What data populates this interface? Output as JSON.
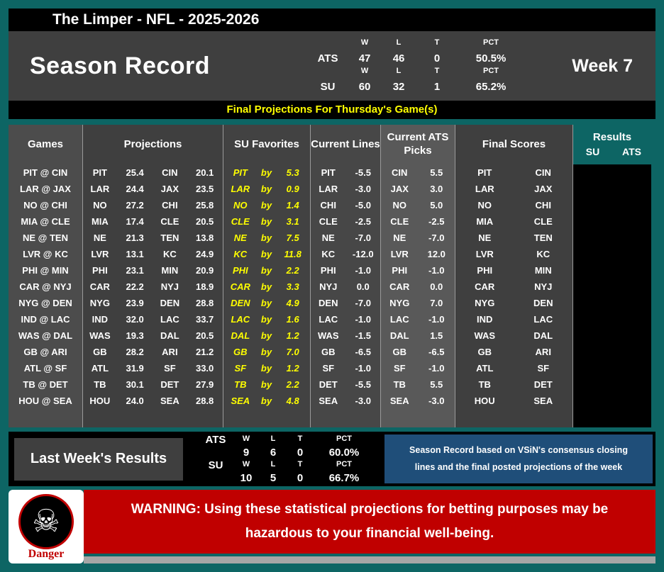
{
  "title_bar": {
    "title": "The Limper - NFL - 2025-2026"
  },
  "season_record": {
    "heading": "Season Record",
    "week": "Week 7",
    "col_headers": [
      "W",
      "L",
      "T",
      "PCT"
    ],
    "ats": {
      "label": "ATS",
      "w": "47",
      "l": "46",
      "t": "0",
      "pct": "50.5%"
    },
    "su": {
      "label": "SU",
      "w": "60",
      "l": "32",
      "t": "1",
      "pct": "65.2%"
    }
  },
  "banner": {
    "text": "Final Projections For Thursday's Game(s)"
  },
  "table": {
    "headers": {
      "games": "Games",
      "projections": "Projections",
      "su_favorites": "SU Favorites",
      "current_lines": "Current Lines",
      "current_ats_picks": "Current ATS Picks",
      "final_scores": "Final Scores",
      "results": "Results",
      "results_su": "SU",
      "results_ats": "ATS"
    },
    "by_label": "by",
    "rows": [
      {
        "game": "PIT @ CIN",
        "away": "PIT",
        "away_pts": "25.4",
        "home": "CIN",
        "home_pts": "20.1",
        "fav_team": "PIT",
        "fav_margin": "5.3",
        "line_team": "PIT",
        "line_value": "-5.5",
        "pick_team": "CIN",
        "pick_value": "5.5"
      },
      {
        "game": "LAR @ JAX",
        "away": "LAR",
        "away_pts": "24.4",
        "home": "JAX",
        "home_pts": "23.5",
        "fav_team": "LAR",
        "fav_margin": "0.9",
        "line_team": "LAR",
        "line_value": "-3.0",
        "pick_team": "JAX",
        "pick_value": "3.0"
      },
      {
        "game": "NO @ CHI",
        "away": "NO",
        "away_pts": "27.2",
        "home": "CHI",
        "home_pts": "25.8",
        "fav_team": "NO",
        "fav_margin": "1.4",
        "line_team": "CHI",
        "line_value": "-5.0",
        "pick_team": "NO",
        "pick_value": "5.0"
      },
      {
        "game": "MIA @ CLE",
        "away": "MIA",
        "away_pts": "17.4",
        "home": "CLE",
        "home_pts": "20.5",
        "fav_team": "CLE",
        "fav_margin": "3.1",
        "line_team": "CLE",
        "line_value": "-2.5",
        "pick_team": "CLE",
        "pick_value": "-2.5"
      },
      {
        "game": "NE @ TEN",
        "away": "NE",
        "away_pts": "21.3",
        "home": "TEN",
        "home_pts": "13.8",
        "fav_team": "NE",
        "fav_margin": "7.5",
        "line_team": "NE",
        "line_value": "-7.0",
        "pick_team": "NE",
        "pick_value": "-7.0"
      },
      {
        "game": "LVR @ KC",
        "away": "LVR",
        "away_pts": "13.1",
        "home": "KC",
        "home_pts": "24.9",
        "fav_team": "KC",
        "fav_margin": "11.8",
        "line_team": "KC",
        "line_value": "-12.0",
        "pick_team": "LVR",
        "pick_value": "12.0"
      },
      {
        "game": "PHI @ MIN",
        "away": "PHI",
        "away_pts": "23.1",
        "home": "MIN",
        "home_pts": "20.9",
        "fav_team": "PHI",
        "fav_margin": "2.2",
        "line_team": "PHI",
        "line_value": "-1.0",
        "pick_team": "PHI",
        "pick_value": "-1.0"
      },
      {
        "game": "CAR @ NYJ",
        "away": "CAR",
        "away_pts": "22.2",
        "home": "NYJ",
        "home_pts": "18.9",
        "fav_team": "CAR",
        "fav_margin": "3.3",
        "line_team": "NYJ",
        "line_value": "0.0",
        "pick_team": "CAR",
        "pick_value": "0.0"
      },
      {
        "game": "NYG @ DEN",
        "away": "NYG",
        "away_pts": "23.9",
        "home": "DEN",
        "home_pts": "28.8",
        "fav_team": "DEN",
        "fav_margin": "4.9",
        "line_team": "DEN",
        "line_value": "-7.0",
        "pick_team": "NYG",
        "pick_value": "7.0"
      },
      {
        "game": "IND @ LAC",
        "away": "IND",
        "away_pts": "32.0",
        "home": "LAC",
        "home_pts": "33.7",
        "fav_team": "LAC",
        "fav_margin": "1.6",
        "line_team": "LAC",
        "line_value": "-1.0",
        "pick_team": "LAC",
        "pick_value": "-1.0"
      },
      {
        "game": "WAS @ DAL",
        "away": "WAS",
        "away_pts": "19.3",
        "home": "DAL",
        "home_pts": "20.5",
        "fav_team": "DAL",
        "fav_margin": "1.2",
        "line_team": "WAS",
        "line_value": "-1.5",
        "pick_team": "DAL",
        "pick_value": "1.5"
      },
      {
        "game": "GB @ ARI",
        "away": "GB",
        "away_pts": "28.2",
        "home": "ARI",
        "home_pts": "21.2",
        "fav_team": "GB",
        "fav_margin": "7.0",
        "line_team": "GB",
        "line_value": "-6.5",
        "pick_team": "GB",
        "pick_value": "-6.5"
      },
      {
        "game": "ATL @ SF",
        "away": "ATL",
        "away_pts": "31.9",
        "home": "SF",
        "home_pts": "33.0",
        "fav_team": "SF",
        "fav_margin": "1.2",
        "line_team": "SF",
        "line_value": "-1.0",
        "pick_team": "SF",
        "pick_value": "-1.0"
      },
      {
        "game": "TB @ DET",
        "away": "TB",
        "away_pts": "30.1",
        "home": "DET",
        "home_pts": "27.9",
        "fav_team": "TB",
        "fav_margin": "2.2",
        "line_team": "DET",
        "line_value": "-5.5",
        "pick_team": "TB",
        "pick_value": "5.5"
      },
      {
        "game": "HOU @ SEA",
        "away": "HOU",
        "away_pts": "24.0",
        "home": "SEA",
        "home_pts": "28.8",
        "fav_team": "SEA",
        "fav_margin": "4.8",
        "line_team": "SEA",
        "line_value": "-3.0",
        "pick_team": "SEA",
        "pick_value": "-3.0"
      }
    ]
  },
  "last_week": {
    "heading": "Last Week's Results",
    "col_headers": [
      "W",
      "L",
      "T",
      "PCT"
    ],
    "ats": {
      "label": "ATS",
      "w": "9",
      "l": "6",
      "t": "0",
      "pct": "60.0%"
    },
    "su": {
      "label": "SU",
      "w": "10",
      "l": "5",
      "t": "0",
      "pct": "66.7%"
    }
  },
  "note": {
    "line1": "Season Record based on VSiN's consensus closing",
    "line2": "lines and the final posted projections of the week"
  },
  "warning": {
    "line1": "WARNING: Using these statistical projections for betting purposes may be",
    "line2": "hazardous to your financial well-being.",
    "danger_label": "Danger",
    "skull_icon": "☠"
  },
  "colors": {
    "teal": "#0d6564",
    "darkgray": "#3f3f3f",
    "yellow": "#ffff00",
    "blue": "#1f4e79",
    "red": "#c00000"
  }
}
